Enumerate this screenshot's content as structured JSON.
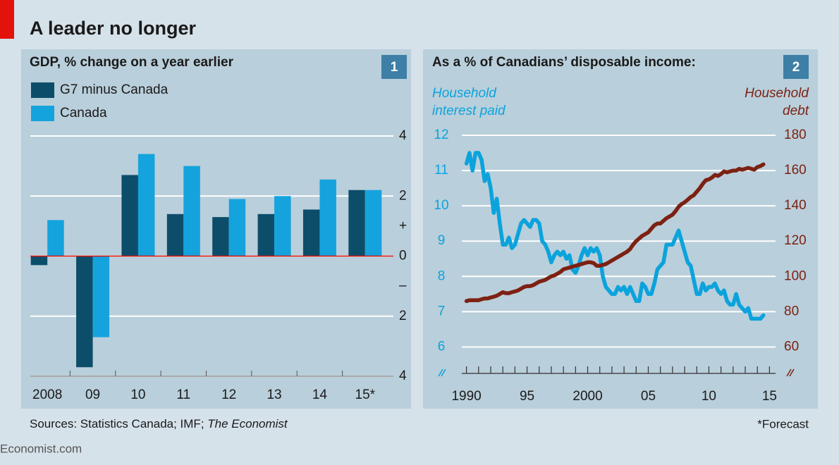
{
  "title": "A leader no longer",
  "source": "Sources: Statistics Canada; IMF; ",
  "source_italic": "The Economist",
  "footnote": "*Forecast",
  "brand": "Economist.com",
  "chart_data": [
    {
      "type": "bar",
      "title": "GDP, % change on a year earlier",
      "panel_number": "1",
      "categories": [
        "2008",
        "09",
        "10",
        "11",
        "12",
        "13",
        "14",
        "15*"
      ],
      "series": [
        {
          "name": "G7 minus Canada",
          "color": "#0c4e6a",
          "values": [
            -0.3,
            -3.7,
            2.7,
            1.4,
            1.3,
            1.4,
            1.55,
            2.2
          ]
        },
        {
          "name": "Canada",
          "color": "#15a3dd",
          "values": [
            1.2,
            -2.7,
            3.4,
            3.0,
            1.9,
            2.0,
            2.55,
            2.2
          ]
        }
      ],
      "ylim": [
        -4,
        4
      ],
      "yticks": [
        {
          "value": -4,
          "label": "4"
        },
        {
          "value": -2,
          "label": "2"
        },
        0,
        2,
        4
      ],
      "ysigns": [
        {
          "value": 1,
          "label": "+"
        },
        {
          "value": -1,
          "label": "–"
        }
      ],
      "grid": true
    },
    {
      "type": "line",
      "title": "As a % of Canadians’ disposable income:",
      "panel_number": "2",
      "y_label": [
        "Household",
        "interest paid"
      ],
      "y2_label": [
        "Household",
        "debt"
      ],
      "x": [
        1990,
        1990.25,
        1990.5,
        1990.75,
        1991,
        1991.25,
        1991.5,
        1991.75,
        1992,
        1992.25,
        1992.5,
        1992.75,
        1993,
        1993.25,
        1993.5,
        1993.75,
        1994,
        1994.25,
        1994.5,
        1994.75,
        1995,
        1995.25,
        1995.5,
        1995.75,
        1996,
        1996.25,
        1996.5,
        1996.75,
        1997,
        1997.25,
        1997.5,
        1997.75,
        1998,
        1998.25,
        1998.5,
        1998.75,
        1999,
        1999.25,
        1999.5,
        1999.75,
        2000,
        2000.25,
        2000.5,
        2000.75,
        2001,
        2001.25,
        2001.5,
        2001.75,
        2002,
        2002.25,
        2002.5,
        2002.75,
        2003,
        2003.25,
        2003.5,
        2003.75,
        2004,
        2004.25,
        2004.5,
        2004.75,
        2005,
        2005.25,
        2005.5,
        2005.75,
        2006,
        2006.25,
        2006.5,
        2006.75,
        2007,
        2007.25,
        2007.5,
        2007.75,
        2008,
        2008.25,
        2008.5,
        2008.75,
        2009,
        2009.25,
        2009.5,
        2009.75,
        2010,
        2010.25,
        2010.5,
        2010.75,
        2011,
        2011.25,
        2011.5,
        2011.75,
        2012,
        2012.25,
        2012.5,
        2012.75,
        2013,
        2013.25,
        2013.5,
        2013.75,
        2014,
        2014.25,
        2014.5
      ],
      "series": [
        {
          "name": "Household interest paid",
          "color": "#0ba3dc",
          "axis": "y",
          "values": [
            11.2,
            11.5,
            11.0,
            11.5,
            11.5,
            11.3,
            10.7,
            10.9,
            10.5,
            9.8,
            10.2,
            9.5,
            8.9,
            8.9,
            9.1,
            8.8,
            8.9,
            9.2,
            9.5,
            9.6,
            9.5,
            9.4,
            9.6,
            9.6,
            9.5,
            9.0,
            8.9,
            8.7,
            8.4,
            8.6,
            8.7,
            8.6,
            8.7,
            8.5,
            8.6,
            8.2,
            8.1,
            8.3,
            8.6,
            8.8,
            8.6,
            8.8,
            8.7,
            8.8,
            8.6,
            8.0,
            7.7,
            7.6,
            7.5,
            7.5,
            7.7,
            7.6,
            7.7,
            7.5,
            7.7,
            7.5,
            7.3,
            7.3,
            7.8,
            7.7,
            7.5,
            7.5,
            7.8,
            8.2,
            8.3,
            8.4,
            8.9,
            8.9,
            8.9,
            9.1,
            9.3,
            9.0,
            8.7,
            8.4,
            8.3,
            7.9,
            7.5,
            7.5,
            7.8,
            7.6,
            7.7,
            7.7,
            7.8,
            7.6,
            7.5,
            7.6,
            7.3,
            7.2,
            7.2,
            7.5,
            7.2,
            7.1,
            7.0,
            7.1,
            6.8,
            6.8,
            6.8,
            6.8,
            6.9
          ]
        },
        {
          "name": "Household debt",
          "color": "#7d2112",
          "axis": "y2",
          "values": [
            86,
            86.5,
            86.5,
            86.5,
            86.5,
            87,
            87.5,
            87.5,
            88,
            88.5,
            89,
            90,
            91,
            90.5,
            90.5,
            91,
            91.5,
            92,
            93,
            94,
            94.5,
            94.5,
            95,
            96,
            97,
            97.5,
            98,
            99,
            100,
            100.5,
            101.5,
            102.5,
            104,
            104.5,
            105,
            105.5,
            106,
            106.5,
            107,
            107.5,
            108,
            108,
            107.5,
            106,
            106,
            106.5,
            107,
            108,
            109,
            110,
            111,
            112,
            113,
            114,
            115.5,
            118,
            120,
            121.5,
            123,
            124,
            125,
            127,
            129,
            130,
            130,
            131.5,
            133,
            134,
            135,
            137,
            139.5,
            141,
            142,
            143.5,
            145,
            146,
            148,
            150,
            152.5,
            154.5,
            155,
            156,
            157.5,
            157,
            158,
            159.5,
            159,
            159.5,
            160,
            160,
            161,
            160.5,
            161,
            161.5,
            161,
            160.5,
            162,
            162.5,
            163.5
          ]
        }
      ],
      "xlim": [
        1989.5,
        2015.5
      ],
      "xticks": [
        1990,
        {
          "value": 1995,
          "label": "95"
        },
        2000,
        {
          "value": 2005,
          "label": "05"
        },
        {
          "value": 2010,
          "label": "10"
        },
        {
          "value": 2015,
          "label": "15"
        }
      ],
      "xminorticks": [
        1990,
        1991,
        1992,
        1993,
        1994,
        1995,
        1996,
        1997,
        1998,
        1999,
        2000,
        2001,
        2002,
        2003,
        2004,
        2005,
        2006,
        2007,
        2008,
        2009,
        2010,
        2011,
        2012,
        2013,
        2014,
        2015
      ],
      "ylim": [
        5.25,
        12
      ],
      "yticks": [
        6,
        7,
        8,
        9,
        10,
        11,
        12
      ],
      "y2lim": [
        45,
        180
      ],
      "y2ticks": [
        60,
        80,
        100,
        120,
        140,
        160,
        180
      ],
      "grid": true
    }
  ]
}
